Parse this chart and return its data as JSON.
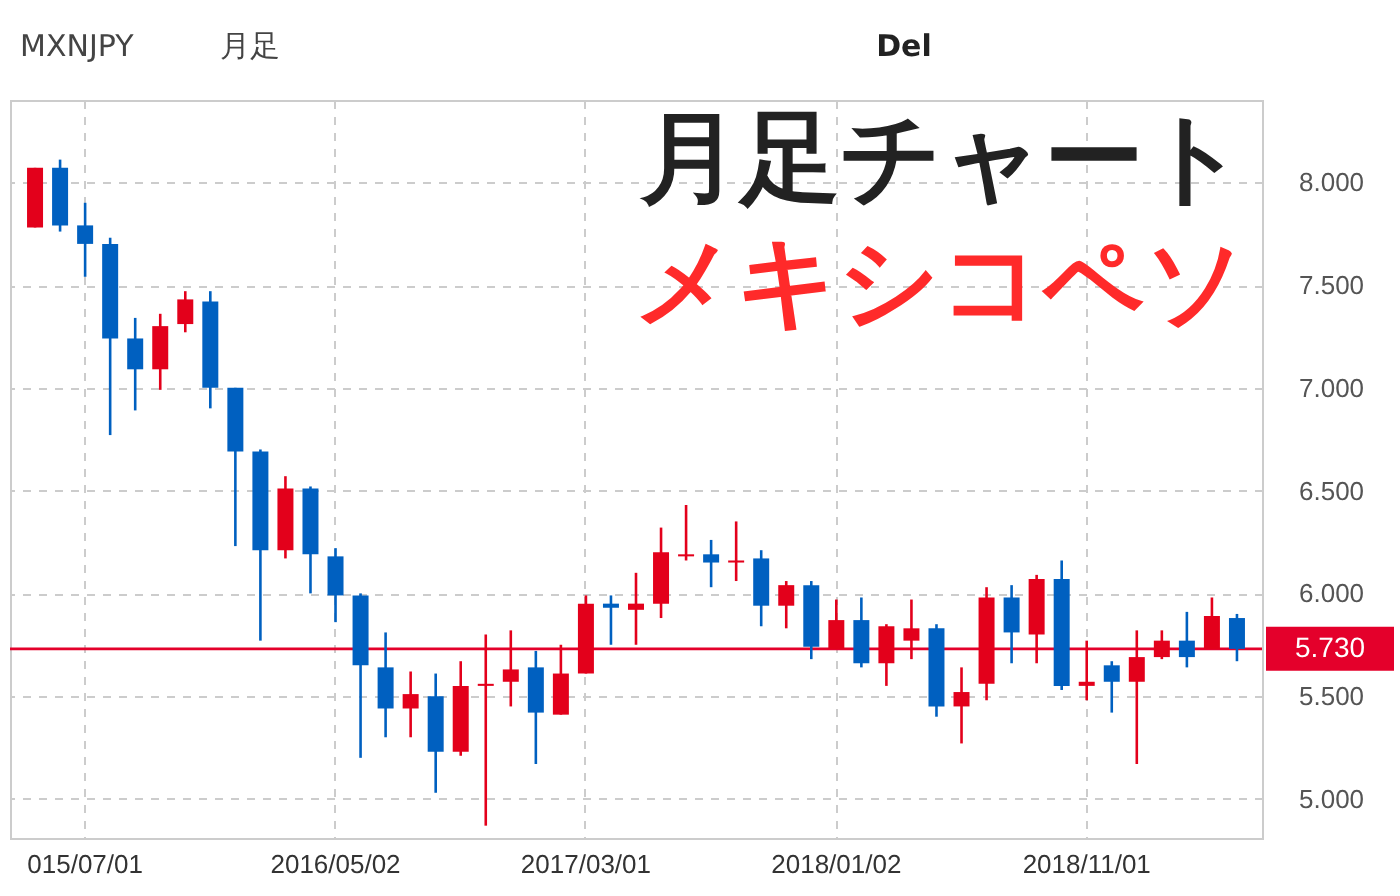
{
  "chart_data": {
    "type": "candlestick",
    "title": "月足チャート",
    "subtitle": "メキシコペソ",
    "annotations": [
      "MXNJPY",
      "月足",
      "Del"
    ],
    "categories": [
      null,
      null,
      "015/07/01",
      null,
      null,
      null,
      null,
      null,
      null,
      null,
      null,
      null,
      "2016/05/02",
      null,
      null,
      null,
      null,
      null,
      null,
      null,
      null,
      null,
      "2017/03/01",
      null,
      null,
      null,
      null,
      null,
      null,
      null,
      null,
      null,
      "2018/01/02",
      null,
      null,
      null,
      null,
      null,
      null,
      null,
      null,
      null,
      "2018/11/01",
      null,
      null,
      null,
      null,
      null,
      null
    ],
    "ohlc": [
      [
        7.78,
        8.07,
        7.78,
        8.07
      ],
      [
        8.07,
        8.11,
        7.76,
        7.79
      ],
      [
        7.79,
        7.9,
        7.54,
        7.7
      ],
      [
        7.7,
        7.73,
        6.77,
        7.24
      ],
      [
        7.24,
        7.34,
        6.89,
        7.09
      ],
      [
        7.09,
        7.36,
        6.99,
        7.3
      ],
      [
        7.31,
        7.47,
        7.27,
        7.43
      ],
      [
        7.42,
        7.47,
        6.9,
        7.0
      ],
      [
        7.0,
        7.0,
        6.23,
        6.69
      ],
      [
        6.69,
        6.7,
        5.77,
        6.21
      ],
      [
        6.21,
        6.57,
        6.17,
        6.51
      ],
      [
        6.51,
        6.52,
        6.0,
        6.19
      ],
      [
        6.18,
        6.22,
        5.86,
        5.99
      ],
      [
        5.99,
        6.0,
        5.2,
        5.65
      ],
      [
        5.64,
        5.81,
        5.3,
        5.44
      ],
      [
        5.44,
        5.62,
        5.3,
        5.51
      ],
      [
        5.5,
        5.61,
        5.03,
        5.23
      ],
      [
        5.23,
        5.67,
        5.21,
        5.55
      ],
      [
        5.55,
        5.8,
        4.87,
        5.56
      ],
      [
        5.57,
        5.82,
        5.45,
        5.63
      ],
      [
        5.64,
        5.72,
        5.17,
        5.42
      ],
      [
        5.41,
        5.75,
        5.41,
        5.61
      ],
      [
        5.61,
        5.99,
        5.61,
        5.95
      ],
      [
        5.95,
        5.99,
        5.75,
        5.93
      ],
      [
        5.92,
        6.1,
        5.75,
        5.95
      ],
      [
        5.95,
        6.32,
        5.88,
        6.2
      ],
      [
        6.18,
        6.43,
        6.16,
        6.19
      ],
      [
        6.19,
        6.26,
        6.03,
        6.15
      ],
      [
        6.15,
        6.35,
        6.06,
        6.16
      ],
      [
        6.17,
        6.21,
        5.84,
        5.94
      ],
      [
        5.94,
        6.06,
        5.83,
        6.04
      ],
      [
        6.04,
        6.06,
        5.68,
        5.74
      ],
      [
        5.73,
        5.97,
        5.73,
        5.87
      ],
      [
        5.87,
        5.98,
        5.64,
        5.66
      ],
      [
        5.66,
        5.85,
        5.55,
        5.84
      ],
      [
        5.77,
        5.97,
        5.68,
        5.83
      ],
      [
        5.83,
        5.85,
        5.4,
        5.45
      ],
      [
        5.45,
        5.64,
        5.27,
        5.52
      ],
      [
        5.56,
        6.03,
        5.48,
        5.98
      ],
      [
        5.98,
        6.04,
        5.66,
        5.81
      ],
      [
        5.8,
        6.09,
        5.66,
        6.07
      ],
      [
        6.07,
        6.16,
        5.53,
        5.55
      ],
      [
        5.55,
        5.77,
        5.48,
        5.57
      ],
      [
        5.65,
        5.67,
        5.42,
        5.57
      ],
      [
        5.57,
        5.82,
        5.17,
        5.69
      ],
      [
        5.69,
        5.82,
        5.68,
        5.77
      ],
      [
        5.77,
        5.91,
        5.64,
        5.69
      ],
      [
        5.73,
        5.98,
        5.73,
        5.89
      ],
      [
        5.88,
        5.9,
        5.67,
        5.73
      ]
    ],
    "colors": [
      "#e3001b",
      "#0060c0",
      "#0060c0",
      "#0060c0",
      "#0060c0",
      "#e3001b",
      "#e3001b",
      "#0060c0",
      "#0060c0",
      "#0060c0",
      "#e3001b",
      "#0060c0",
      "#0060c0",
      "#0060c0",
      "#0060c0",
      "#e3001b",
      "#0060c0",
      "#e3001b",
      "#e3001b",
      "#e3001b",
      "#0060c0",
      "#e3001b",
      "#e3001b",
      "#0060c0",
      "#e3001b",
      "#e3001b",
      "#e3001b",
      "#0060c0",
      "#e3001b",
      "#0060c0",
      "#e3001b",
      "#0060c0",
      "#e3001b",
      "#0060c0",
      "#e3001b",
      "#e3001b",
      "#0060c0",
      "#e3001b",
      "#e3001b",
      "#0060c0",
      "#e3001b",
      "#0060c0",
      "#e3001b",
      "#0060c0",
      "#e3001b",
      "#e3001b",
      "#0060c0",
      "#e3001b",
      "#0060c0"
    ],
    "ylim": [
      4.81,
      8.4
    ],
    "yticks": [
      {
        "value": 5,
        "label": "5.000"
      },
      {
        "value": 5.5,
        "label": "5.500"
      },
      {
        "value": 6,
        "label": "6.000"
      },
      {
        "value": 6.5,
        "label": "6.500"
      },
      {
        "value": 7,
        "label": "7.000"
      },
      {
        "value": 7.5,
        "label": "7.500"
      },
      {
        "value": 8,
        "label": "8.000"
      }
    ],
    "ref_lines": [
      {
        "axis": "y",
        "value": 5.73,
        "label": "5.730",
        "color": "#e4002b"
      }
    ],
    "grid": true
  }
}
